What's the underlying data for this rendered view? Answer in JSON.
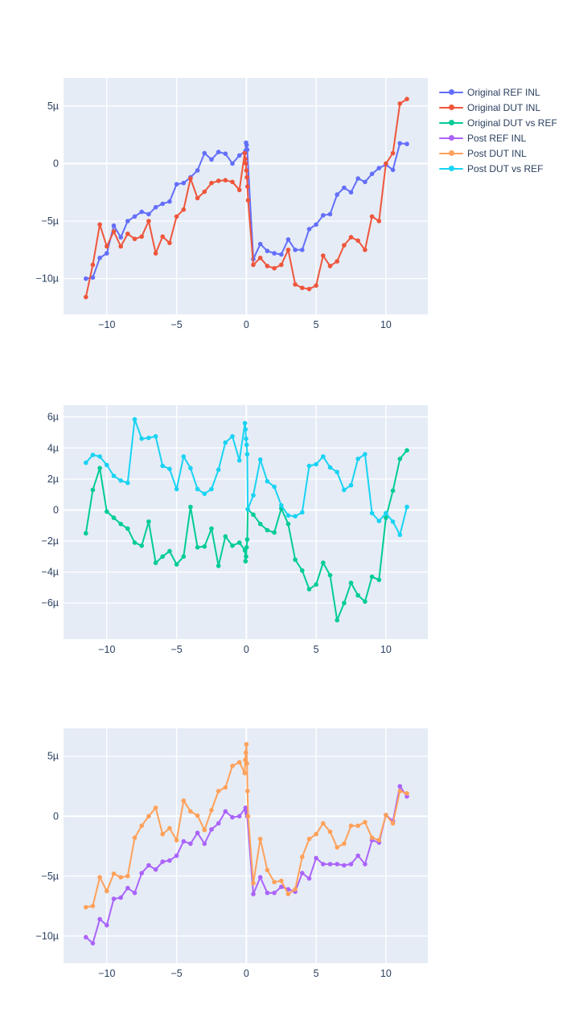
{
  "page": {
    "background": "#ffffff",
    "plot_bg": "#E5ECF6",
    "grid_color": "#ffffff",
    "tick_color": "#2a3f5f"
  },
  "legend": {
    "entries": [
      {
        "label": "Original REF INL",
        "color": "#636EFA"
      },
      {
        "label": "Original DUT INL",
        "color": "#EF553B"
      },
      {
        "label": "Original DUT vs REF",
        "color": "#00CC96"
      },
      {
        "label": "Post REF INL",
        "color": "#AB63FA"
      },
      {
        "label": "Post DUT INL",
        "color": "#FFA15A"
      },
      {
        "label": "Post DUT vs REF",
        "color": "#19D3F3"
      }
    ]
  },
  "chart_data": [
    {
      "id": "chart-1",
      "type": "line",
      "title": "",
      "xlabel": "",
      "ylabel": "",
      "grid": true,
      "legend_position": "top-right-outside",
      "xlim": [
        -13.1,
        13.0
      ],
      "ylim": [
        -13.1,
        7.43
      ],
      "xticks": [
        -10,
        -5,
        0,
        5,
        10
      ],
      "xtick_labels": [
        "−10",
        "−5",
        "0",
        "5",
        "10"
      ],
      "yticks": [
        5,
        0,
        -5,
        -10
      ],
      "ytick_labels": [
        "5µ",
        "0",
        "−5µ",
        "−10µ"
      ],
      "series": [
        {
          "name": "Original REF INL",
          "color": "#636EFA",
          "mode": "lines+markers",
          "x": [
            -11.5,
            -11,
            -10.5,
            -10,
            -9.5,
            -9,
            -8.5,
            -8,
            -7.5,
            -7,
            -6.5,
            -6,
            -5.5,
            -5,
            -4.5,
            -4,
            -3.5,
            -3,
            -2.5,
            -2,
            -1.5,
            -1,
            -0.5,
            -0.06,
            -0.02,
            0.02,
            0.06,
            0.5,
            1,
            1.5,
            2,
            2.5,
            3,
            3.5,
            4,
            4.5,
            5,
            5.5,
            6,
            6.5,
            7,
            7.5,
            8,
            8.5,
            9,
            9.5,
            10,
            10.5,
            11,
            11.5
          ],
          "y": [
            -10,
            -9.9,
            -8.2,
            -7.8,
            -5.4,
            -6.4,
            -5,
            -4.6,
            -4.2,
            -4.4,
            -3.8,
            -3.5,
            -3.3,
            -1.8,
            -1.7,
            -1.2,
            -0.6,
            0.9,
            0.35,
            1,
            0.85,
            0,
            0.7,
            1.1,
            1.8,
            1.6,
            1.2,
            -8.3,
            -7,
            -7.6,
            -7.8,
            -7.9,
            -6.6,
            -7.5,
            -7.5,
            -5.7,
            -5.3,
            -4.5,
            -4.4,
            -2.7,
            -2.1,
            -2.5,
            -1.3,
            -1.6,
            -0.9,
            -0.4,
            -0.1,
            -0.55,
            1.75,
            1.7
          ]
        },
        {
          "name": "Original DUT INL",
          "color": "#EF553B",
          "mode": "lines+markers",
          "x": [
            -11.5,
            -11,
            -10.5,
            -10,
            -9.5,
            -9,
            -8.5,
            -8,
            -7.5,
            -7,
            -6.5,
            -6,
            -5.5,
            -5,
            -4.5,
            -4,
            -3.5,
            -3,
            -2.5,
            -2,
            -1.5,
            -1,
            -0.5,
            -0.12,
            -0.08,
            -0.04,
            0,
            0.04,
            0.08,
            0.12,
            0.5,
            1,
            1.5,
            2,
            2.5,
            3,
            3.5,
            4,
            4.5,
            5,
            5.5,
            6,
            6.5,
            7,
            7.5,
            8,
            8.5,
            9,
            9.5,
            10,
            10.5,
            11,
            11.5
          ],
          "y": [
            -11.6,
            -8.8,
            -5.3,
            -7.2,
            -5.9,
            -7.2,
            -6.1,
            -6.55,
            -6.35,
            -5,
            -7.8,
            -6.35,
            -6.9,
            -4.6,
            -4,
            -1.3,
            -3,
            -2.45,
            -1.7,
            -1.5,
            -1.45,
            -1.6,
            -2.3,
            0.9,
            0.4,
            0,
            -0.6,
            -1.2,
            -2,
            -3.2,
            -8.8,
            -8.2,
            -8.9,
            -9.1,
            -8.8,
            -7.5,
            -10.5,
            -10.8,
            -10.9,
            -10.6,
            -8,
            -8.9,
            -8.5,
            -7.1,
            -6.4,
            -6.7,
            -7.5,
            -4.6,
            -5,
            0,
            0.9,
            5.2,
            5.6
          ]
        }
      ]
    },
    {
      "id": "chart-2",
      "type": "line",
      "title": "",
      "xlabel": "",
      "ylabel": "",
      "grid": true,
      "legend_position": "none",
      "xlim": [
        -13.1,
        13.0
      ],
      "ylim": [
        -8.32,
        6.76
      ],
      "xticks": [
        -10,
        -5,
        0,
        5,
        10
      ],
      "xtick_labels": [
        "−10",
        "−5",
        "0",
        "5",
        "10"
      ],
      "yticks": [
        6,
        4,
        2,
        0,
        -2,
        -4,
        -6
      ],
      "ytick_labels": [
        "6µ",
        "4µ",
        "2µ",
        "0",
        "−2µ",
        "−4µ",
        "−6µ"
      ],
      "series": [
        {
          "name": "Original DUT vs REF",
          "color": "#00CC96",
          "mode": "lines+markers",
          "x": [
            -11.5,
            -11,
            -10.5,
            -10,
            -9.5,
            -9,
            -8.5,
            -8,
            -7.5,
            -7,
            -6.5,
            -6,
            -5.5,
            -5,
            -4.5,
            -4,
            -3.5,
            -3,
            -2.5,
            -2,
            -1.5,
            -1,
            -0.5,
            -0.1,
            -0.06,
            -0.02,
            0.02,
            0.06,
            0.1,
            0.5,
            1,
            1.5,
            2,
            2.5,
            3,
            3.5,
            4,
            4.5,
            5,
            5.5,
            6,
            6.5,
            7,
            7.5,
            8,
            8.5,
            9,
            9.5,
            10,
            10.5,
            11,
            11.5
          ],
          "y": [
            -1.5,
            1.3,
            2.7,
            -0.1,
            -0.5,
            -0.9,
            -1.2,
            -2.1,
            -2.3,
            -0.75,
            -3.4,
            -3,
            -2.65,
            -3.5,
            -3,
            0.2,
            -2.4,
            -2.35,
            -1.2,
            -3.6,
            -1.7,
            -2.3,
            -2.1,
            -2.6,
            -3.3,
            -3,
            -2.4,
            -1.9,
            0.05,
            -0.3,
            -0.9,
            -1.3,
            -1.45,
            0.1,
            -0.9,
            -3.2,
            -3.9,
            -5.1,
            -4.8,
            -3.4,
            -4.2,
            -7.1,
            -6,
            -4.7,
            -5.5,
            -5.9,
            -4.3,
            -4.5,
            -0.5,
            1.25,
            3.3,
            3.85
          ]
        },
        {
          "name": "Post DUT vs REF",
          "color": "#19D3F3",
          "mode": "lines+markers",
          "x": [
            -11.5,
            -11,
            -10.5,
            -10,
            -9.5,
            -9,
            -8.5,
            -8,
            -7.5,
            -7,
            -6.5,
            -6,
            -5.5,
            -5,
            -4.5,
            -4,
            -3.5,
            -3,
            -2.5,
            -2,
            -1.5,
            -1,
            -0.5,
            -0.1,
            -0.06,
            -0.02,
            0.02,
            0.06,
            0.1,
            0.5,
            1,
            1.5,
            2,
            2.5,
            3,
            3.5,
            4,
            4.5,
            5,
            5.5,
            6,
            6.5,
            7,
            7.5,
            8,
            8.5,
            9,
            9.5,
            10,
            10.5,
            11,
            11.5
          ],
          "y": [
            3.05,
            3.55,
            3.45,
            2.9,
            2.2,
            1.9,
            1.75,
            5.85,
            4.6,
            4.65,
            4.75,
            2.85,
            2.65,
            1.35,
            3.45,
            2.7,
            1.35,
            1.05,
            1.35,
            2.6,
            4.35,
            4.75,
            3.2,
            5.6,
            5.2,
            4.6,
            4.2,
            3.6,
            0.05,
            0.95,
            3.25,
            1.85,
            1.5,
            0.3,
            -0.35,
            -0.4,
            -0.15,
            2.85,
            2.95,
            3.45,
            2.75,
            2.45,
            1.3,
            1.6,
            3.3,
            3.6,
            -0.2,
            -0.7,
            -0.2,
            -0.75,
            -1.6,
            0.2
          ]
        }
      ]
    },
    {
      "id": "chart-3",
      "type": "line",
      "title": "",
      "xlabel": "",
      "ylabel": "",
      "grid": true,
      "legend_position": "none",
      "xlim": [
        -13.1,
        13.0
      ],
      "ylim": [
        -12.26,
        7.33
      ],
      "xticks": [
        -10,
        -5,
        0,
        5,
        10
      ],
      "xtick_labels": [
        "−10",
        "−5",
        "0",
        "5",
        "10"
      ],
      "yticks": [
        5,
        0,
        -5,
        -10
      ],
      "ytick_labels": [
        "5µ",
        "0",
        "−5µ",
        "−10µ"
      ],
      "series": [
        {
          "name": "Post REF INL",
          "color": "#AB63FA",
          "mode": "lines+markers",
          "x": [
            -11.5,
            -11,
            -10.5,
            -10,
            -9.5,
            -9,
            -8.5,
            -8,
            -7.5,
            -7,
            -6.5,
            -6,
            -5.5,
            -5,
            -4.5,
            -4,
            -3.5,
            -3,
            -2.5,
            -2,
            -1.5,
            -1,
            -0.5,
            -0.06,
            -0.02,
            0.02,
            0.06,
            0.5,
            1,
            1.5,
            2,
            2.5,
            3,
            3.5,
            4,
            4.5,
            5,
            5.5,
            6,
            6.5,
            7,
            7.5,
            8,
            8.5,
            9,
            9.5,
            10,
            10.5,
            11,
            11.5
          ],
          "y": [
            -10.1,
            -10.6,
            -8.6,
            -9.1,
            -6.9,
            -6.8,
            -6,
            -6.4,
            -4.75,
            -4.1,
            -4.45,
            -3.8,
            -3.7,
            -3.3,
            -2.1,
            -2.3,
            -1.4,
            -2.3,
            -1.1,
            -0.6,
            0.4,
            -0.1,
            0,
            0.7,
            0.5,
            0.25,
            0,
            -6.5,
            -5.1,
            -6.4,
            -6.4,
            -5.9,
            -6.1,
            -6.3,
            -4.75,
            -5.2,
            -3.5,
            -4,
            -4,
            -4,
            -4.1,
            -4,
            -3.3,
            -4,
            -2,
            -2.2,
            0.1,
            -0.4,
            2.5,
            1.65
          ]
        },
        {
          "name": "Post DUT INL",
          "color": "#FFA15A",
          "mode": "lines+markers",
          "x": [
            -11.5,
            -11,
            -10.5,
            -10,
            -9.5,
            -9,
            -8.5,
            -8,
            -7.5,
            -7,
            -6.5,
            -6,
            -5.5,
            -5,
            -4.5,
            -4,
            -3.5,
            -3,
            -2.5,
            -2,
            -1.5,
            -1,
            -0.5,
            -0.12,
            -0.08,
            -0.04,
            0,
            0.04,
            0.08,
            0.12,
            0.5,
            1,
            1.5,
            2,
            2.5,
            3,
            3.5,
            4,
            4.5,
            5,
            5.5,
            6,
            6.5,
            7,
            7.5,
            8,
            8.5,
            9,
            9.5,
            10,
            10.5,
            11,
            11.5
          ],
          "y": [
            -7.6,
            -7.5,
            -5.1,
            -6.25,
            -4.8,
            -5.1,
            -5,
            -1.8,
            -0.8,
            0,
            0.7,
            -1.5,
            -1,
            -2,
            1.3,
            0.4,
            0.05,
            -1.15,
            0.5,
            2.1,
            2.4,
            4.2,
            4.5,
            3.6,
            4.7,
            5.3,
            6,
            4.4,
            2.1,
            0,
            -5.6,
            -1.9,
            -4.5,
            -5.5,
            -5.4,
            -6.5,
            -6.1,
            -3.4,
            -1.9,
            -1.5,
            -0.6,
            -1.3,
            -2.6,
            -2.3,
            -0.8,
            -0.8,
            -0.5,
            -1.8,
            -2,
            0.1,
            -0.6,
            2.1,
            1.9
          ]
        }
      ]
    }
  ]
}
